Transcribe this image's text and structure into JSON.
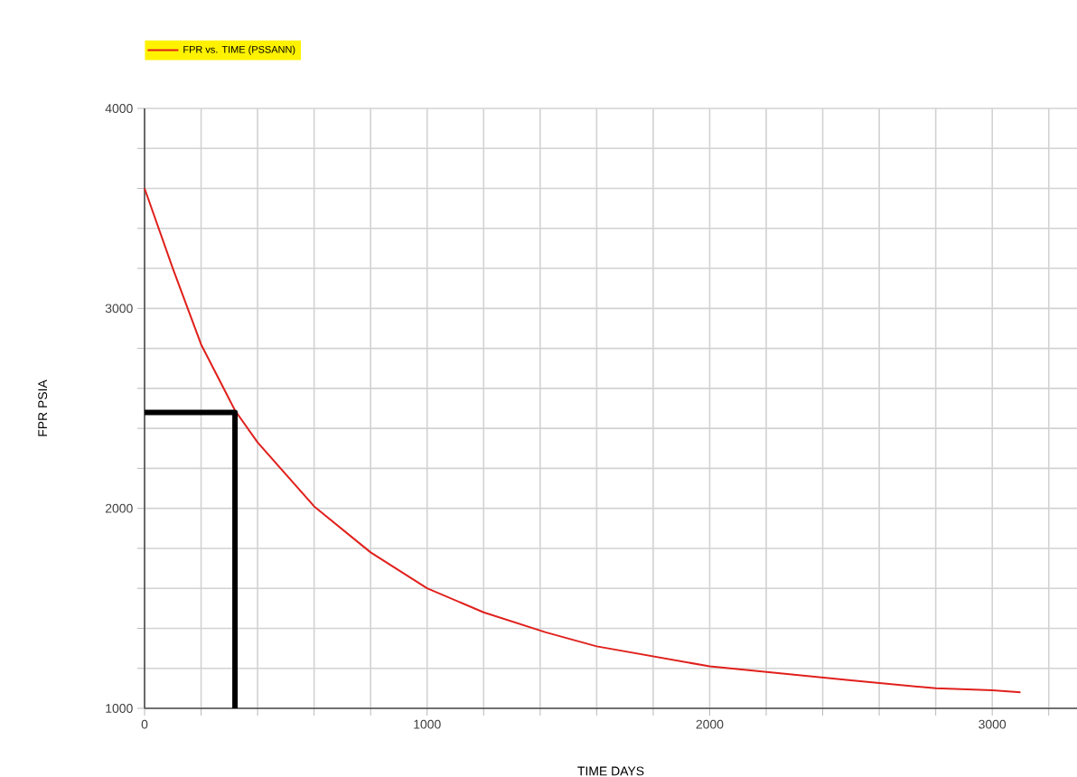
{
  "chart_data": {
    "type": "line",
    "xlabel": "TIME  DAYS",
    "ylabel": "FPR  PSIA",
    "xlim": [
      0,
      3300
    ],
    "ylim": [
      1000,
      4000
    ],
    "xticks": [
      0,
      {
        "value": 200,
        "label": null
      },
      {
        "value": 400,
        "label": null
      },
      {
        "value": 600,
        "label": null
      },
      {
        "value": 800,
        "label": null
      },
      1000,
      {
        "value": 1200,
        "label": null
      },
      {
        "value": 1400,
        "label": null
      },
      {
        "value": 1600,
        "label": null
      },
      {
        "value": 1800,
        "label": null
      },
      2000,
      {
        "value": 2200,
        "label": null
      },
      {
        "value": 2400,
        "label": null
      },
      {
        "value": 2600,
        "label": null
      },
      {
        "value": 2800,
        "label": null
      },
      3000,
      {
        "value": 3200,
        "label": null
      }
    ],
    "yticks": [
      1000,
      {
        "value": 1200,
        "label": null
      },
      {
        "value": 1400,
        "label": null
      },
      {
        "value": 1600,
        "label": null
      },
      {
        "value": 1800,
        "label": null
      },
      2000,
      {
        "value": 2200,
        "label": null
      },
      {
        "value": 2400,
        "label": null
      },
      {
        "value": 2600,
        "label": null
      },
      {
        "value": 2800,
        "label": null
      },
      3000,
      {
        "value": 3200,
        "label": null
      },
      {
        "value": 3400,
        "label": null
      },
      {
        "value": 3600,
        "label": null
      },
      {
        "value": 3800,
        "label": null
      },
      4000
    ],
    "grid": true,
    "legend": "top left",
    "line_style": "solid",
    "marker": "none",
    "series": [
      {
        "name": "FPR vs. TIME (PSSANN)",
        "color": "#e0201c",
        "x": [
          0,
          100,
          200,
          320,
          400,
          600,
          800,
          1000,
          1200,
          1420,
          1600,
          2000,
          2500,
          2800,
          3000,
          3100
        ],
        "values": [
          3600,
          3200,
          2820,
          2490,
          2330,
          2010,
          1780,
          1600,
          1480,
          1380,
          1310,
          1210,
          1140,
          1100,
          1090,
          1080
        ]
      },
      {
        "color": "#000000",
        "x": [
          0,
          320,
          320
        ],
        "values": [
          2480,
          2480,
          1000
        ]
      }
    ]
  }
}
